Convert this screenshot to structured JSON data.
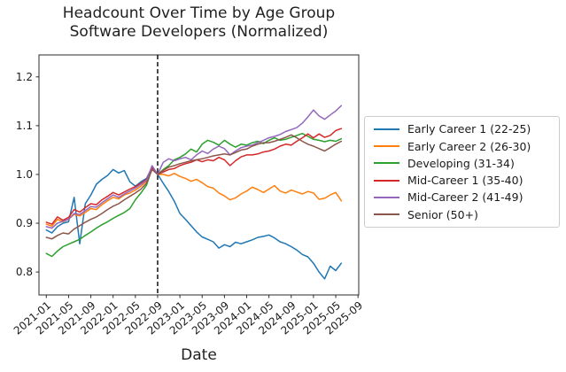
{
  "chart_data": {
    "type": "line",
    "title_line1": "Headcount Over Time by Age Group",
    "title_line2": "Software Developers (Normalized)",
    "xlabel": "Date",
    "ylabel": "",
    "grid": false,
    "legend_position": "outside-right",
    "background": "#ffffff",
    "axis_color": "#2b2b2b",
    "x_monthly": [
      "2021-01",
      "2021-02",
      "2021-03",
      "2021-04",
      "2021-05",
      "2021-06",
      "2021-07",
      "2021-08",
      "2021-09",
      "2021-10",
      "2021-11",
      "2021-12",
      "2022-01",
      "2022-02",
      "2022-03",
      "2022-04",
      "2022-05",
      "2022-06",
      "2022-07",
      "2022-08",
      "2022-09",
      "2022-10",
      "2022-11",
      "2022-12",
      "2023-01",
      "2023-02",
      "2023-03",
      "2023-04",
      "2023-05",
      "2023-06",
      "2023-07",
      "2023-08",
      "2023-09",
      "2023-10",
      "2023-11",
      "2023-12",
      "2024-01",
      "2024-02",
      "2024-03",
      "2024-04",
      "2024-05",
      "2024-06",
      "2024-07",
      "2024-08",
      "2024-09",
      "2024-10",
      "2024-11",
      "2024-12",
      "2025-01",
      "2025-02",
      "2025-03",
      "2025-04",
      "2025-05",
      "2025-06"
    ],
    "x_tick_labels": [
      "2021-01",
      "2021-05",
      "2021-09",
      "2022-01",
      "2022-05",
      "2022-09",
      "2023-01",
      "2023-05",
      "2023-09",
      "2024-01",
      "2024-05",
      "2024-09",
      "2025-01",
      "2025-05",
      "2025-09"
    ],
    "y_ticks": [
      0.8,
      0.9,
      1.0,
      1.1,
      1.2
    ],
    "ylim": [
      0.753,
      1.245
    ],
    "xlim_months": [
      -1.32,
      56.13
    ],
    "vline": {
      "x": "2022-09",
      "style": "dashed",
      "color": "#000000"
    },
    "series": [
      {
        "name": "Early Career 1 (22-25)",
        "color": "#1f77b4",
        "values": [
          0.886,
          0.88,
          0.893,
          0.9,
          0.903,
          0.953,
          0.858,
          0.94,
          0.958,
          0.98,
          0.99,
          0.998,
          1.01,
          1.003,
          1.008,
          0.985,
          0.976,
          0.985,
          0.992,
          1.015,
          1.0,
          0.982,
          0.965,
          0.945,
          0.92,
          0.908,
          0.895,
          0.882,
          0.872,
          0.867,
          0.862,
          0.849,
          0.856,
          0.852,
          0.861,
          0.858,
          0.862,
          0.866,
          0.871,
          0.873,
          0.876,
          0.87,
          0.862,
          0.858,
          0.852,
          0.845,
          0.836,
          0.831,
          0.818,
          0.8,
          0.786,
          0.812,
          0.803,
          0.818
        ]
      },
      {
        "name": "Early Career 2 (26-30)",
        "color": "#ff7f0e",
        "values": [
          0.898,
          0.894,
          0.908,
          0.903,
          0.908,
          0.918,
          0.915,
          0.922,
          0.93,
          0.928,
          0.938,
          0.946,
          0.953,
          0.95,
          0.958,
          0.962,
          0.968,
          0.976,
          0.986,
          1.012,
          1.0,
          1.0,
          0.997,
          1.002,
          0.996,
          0.992,
          0.986,
          0.99,
          0.983,
          0.975,
          0.972,
          0.962,
          0.956,
          0.948,
          0.952,
          0.96,
          0.966,
          0.974,
          0.969,
          0.963,
          0.97,
          0.977,
          0.966,
          0.962,
          0.968,
          0.964,
          0.96,
          0.965,
          0.962,
          0.949,
          0.951,
          0.958,
          0.963,
          0.946
        ]
      },
      {
        "name": "Developing (31-34)",
        "color": "#2ca02c",
        "values": [
          0.838,
          0.832,
          0.843,
          0.852,
          0.857,
          0.862,
          0.867,
          0.875,
          0.882,
          0.89,
          0.897,
          0.903,
          0.91,
          0.916,
          0.922,
          0.93,
          0.948,
          0.962,
          0.978,
          1.012,
          1.0,
          1.01,
          1.018,
          1.03,
          1.035,
          1.042,
          1.052,
          1.046,
          1.062,
          1.07,
          1.066,
          1.06,
          1.07,
          1.062,
          1.056,
          1.062,
          1.06,
          1.065,
          1.068,
          1.063,
          1.07,
          1.075,
          1.07,
          1.072,
          1.076,
          1.08,
          1.084,
          1.078,
          1.072,
          1.07,
          1.067,
          1.07,
          1.068,
          1.073
        ]
      },
      {
        "name": "Mid-Career 1 (35-40)",
        "color": "#d62728",
        "values": [
          0.902,
          0.898,
          0.913,
          0.906,
          0.912,
          0.928,
          0.923,
          0.932,
          0.94,
          0.938,
          0.948,
          0.955,
          0.963,
          0.958,
          0.964,
          0.97,
          0.975,
          0.982,
          0.99,
          1.015,
          1.0,
          1.005,
          1.01,
          1.012,
          1.018,
          1.022,
          1.025,
          1.03,
          1.026,
          1.03,
          1.028,
          1.035,
          1.03,
          1.018,
          1.028,
          1.036,
          1.04,
          1.04,
          1.042,
          1.046,
          1.048,
          1.052,
          1.058,
          1.062,
          1.06,
          1.068,
          1.075,
          1.083,
          1.075,
          1.083,
          1.076,
          1.08,
          1.09,
          1.094
        ]
      },
      {
        "name": "Mid-Career 2 (41-49)",
        "color": "#9467bd",
        "values": [
          0.893,
          0.89,
          0.9,
          0.904,
          0.908,
          0.92,
          0.918,
          0.926,
          0.934,
          0.933,
          0.942,
          0.95,
          0.958,
          0.953,
          0.96,
          0.966,
          0.972,
          0.98,
          0.988,
          1.018,
          1.0,
          1.025,
          1.032,
          1.028,
          1.032,
          1.035,
          1.03,
          1.04,
          1.048,
          1.043,
          1.052,
          1.058,
          1.053,
          1.04,
          1.048,
          1.055,
          1.058,
          1.06,
          1.065,
          1.07,
          1.075,
          1.078,
          1.082,
          1.088,
          1.092,
          1.096,
          1.105,
          1.118,
          1.132,
          1.12,
          1.113,
          1.122,
          1.13,
          1.141
        ]
      },
      {
        "name": "Senior (50+)",
        "color": "#8c564b",
        "values": [
          0.871,
          0.868,
          0.875,
          0.88,
          0.878,
          0.888,
          0.895,
          0.902,
          0.908,
          0.913,
          0.92,
          0.928,
          0.935,
          0.94,
          0.948,
          0.955,
          0.962,
          0.97,
          0.982,
          1.01,
          1.0,
          1.008,
          1.015,
          1.018,
          1.022,
          1.025,
          1.028,
          1.03,
          1.032,
          1.035,
          1.038,
          1.04,
          1.042,
          1.04,
          1.045,
          1.05,
          1.052,
          1.058,
          1.062,
          1.065,
          1.065,
          1.068,
          1.072,
          1.076,
          1.081,
          1.075,
          1.068,
          1.062,
          1.058,
          1.053,
          1.048,
          1.055,
          1.062,
          1.068
        ]
      }
    ]
  }
}
